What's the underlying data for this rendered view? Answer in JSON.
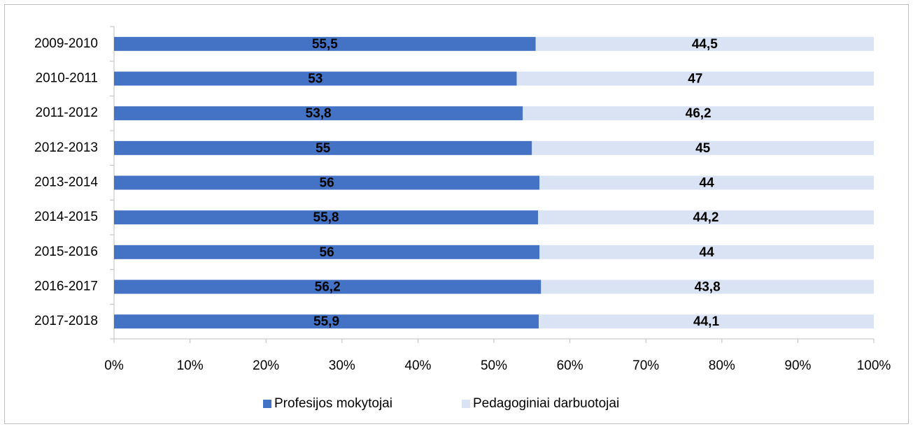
{
  "chart_data": {
    "type": "bar",
    "orientation": "horizontal",
    "stacked": true,
    "categories": [
      "2009-2010",
      "2010-2011",
      "2011-2012",
      "2012-2013",
      "2013-2014",
      "2014-2015",
      "2015-2016",
      "2016-2017",
      "2017-2018"
    ],
    "series": [
      {
        "name": "Profesijos mokytojai",
        "color": "#4472c4",
        "values": [
          55.5,
          53,
          53.8,
          55,
          56,
          55.8,
          56,
          56.2,
          55.9
        ],
        "value_labels": [
          "55,5",
          "53",
          "53,8",
          "55",
          "56",
          "55,8",
          "56",
          "56,2",
          "55,9"
        ]
      },
      {
        "name": "Pedagoginiai darbuotojai",
        "color": "#dae3f3",
        "values": [
          44.5,
          47,
          46.2,
          45,
          44,
          44.2,
          44,
          43.8,
          44.1
        ],
        "value_labels": [
          "44,5",
          "47",
          "46,2",
          "45",
          "44",
          "44,2",
          "44",
          "43,8",
          "44,1"
        ]
      }
    ],
    "xlim": [
      0,
      100
    ],
    "xticks": [
      {
        "value": 0,
        "label": "0%"
      },
      {
        "value": 10,
        "label": "10%"
      },
      {
        "value": 20,
        "label": "20%"
      },
      {
        "value": 30,
        "label": "30%"
      },
      {
        "value": 40,
        "label": "40%"
      },
      {
        "value": 50,
        "label": "50%"
      },
      {
        "value": 60,
        "label": "60%"
      },
      {
        "value": 70,
        "label": "70%"
      },
      {
        "value": 80,
        "label": "80%"
      },
      {
        "value": 90,
        "label": "90%"
      },
      {
        "value": 100,
        "label": "100%"
      }
    ],
    "grid": false,
    "legend": "bottom"
  }
}
